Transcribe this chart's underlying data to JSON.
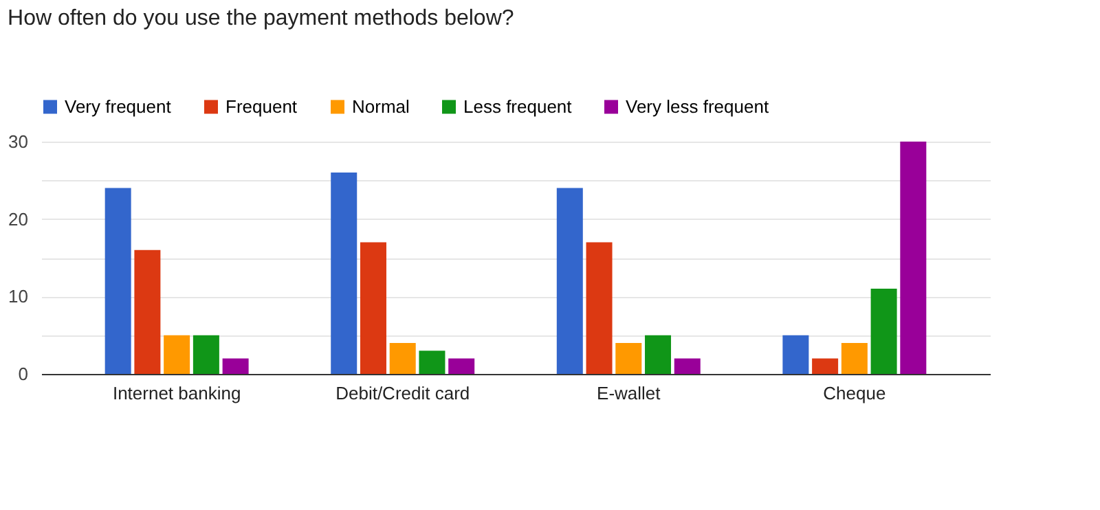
{
  "chart_data": {
    "type": "bar",
    "title": "How often do you use the payment methods below?",
    "categories": [
      "Internet banking",
      "Debit/Credit card",
      "E-wallet",
      "Cheque"
    ],
    "series": [
      {
        "name": "Very frequent",
        "color": "#3366cc",
        "values": [
          24,
          26,
          24,
          5
        ]
      },
      {
        "name": "Frequent",
        "color": "#dc3912",
        "values": [
          16,
          17,
          17,
          2
        ]
      },
      {
        "name": "Normal",
        "color": "#ff9900",
        "values": [
          5,
          4,
          4,
          4
        ]
      },
      {
        "name": "Less frequent",
        "color": "#109618",
        "values": [
          5,
          3,
          5,
          11
        ]
      },
      {
        "name": "Very less frequent",
        "color": "#990099",
        "values": [
          2,
          2,
          2,
          30
        ]
      }
    ],
    "ylim": [
      0,
      30
    ],
    "yticks": [
      0,
      {
        "value": 5,
        "label": null
      },
      10,
      {
        "value": 15,
        "label": null
      },
      20,
      {
        "value": 25,
        "label": null
      },
      30
    ],
    "grid": "y",
    "legend": "top"
  }
}
